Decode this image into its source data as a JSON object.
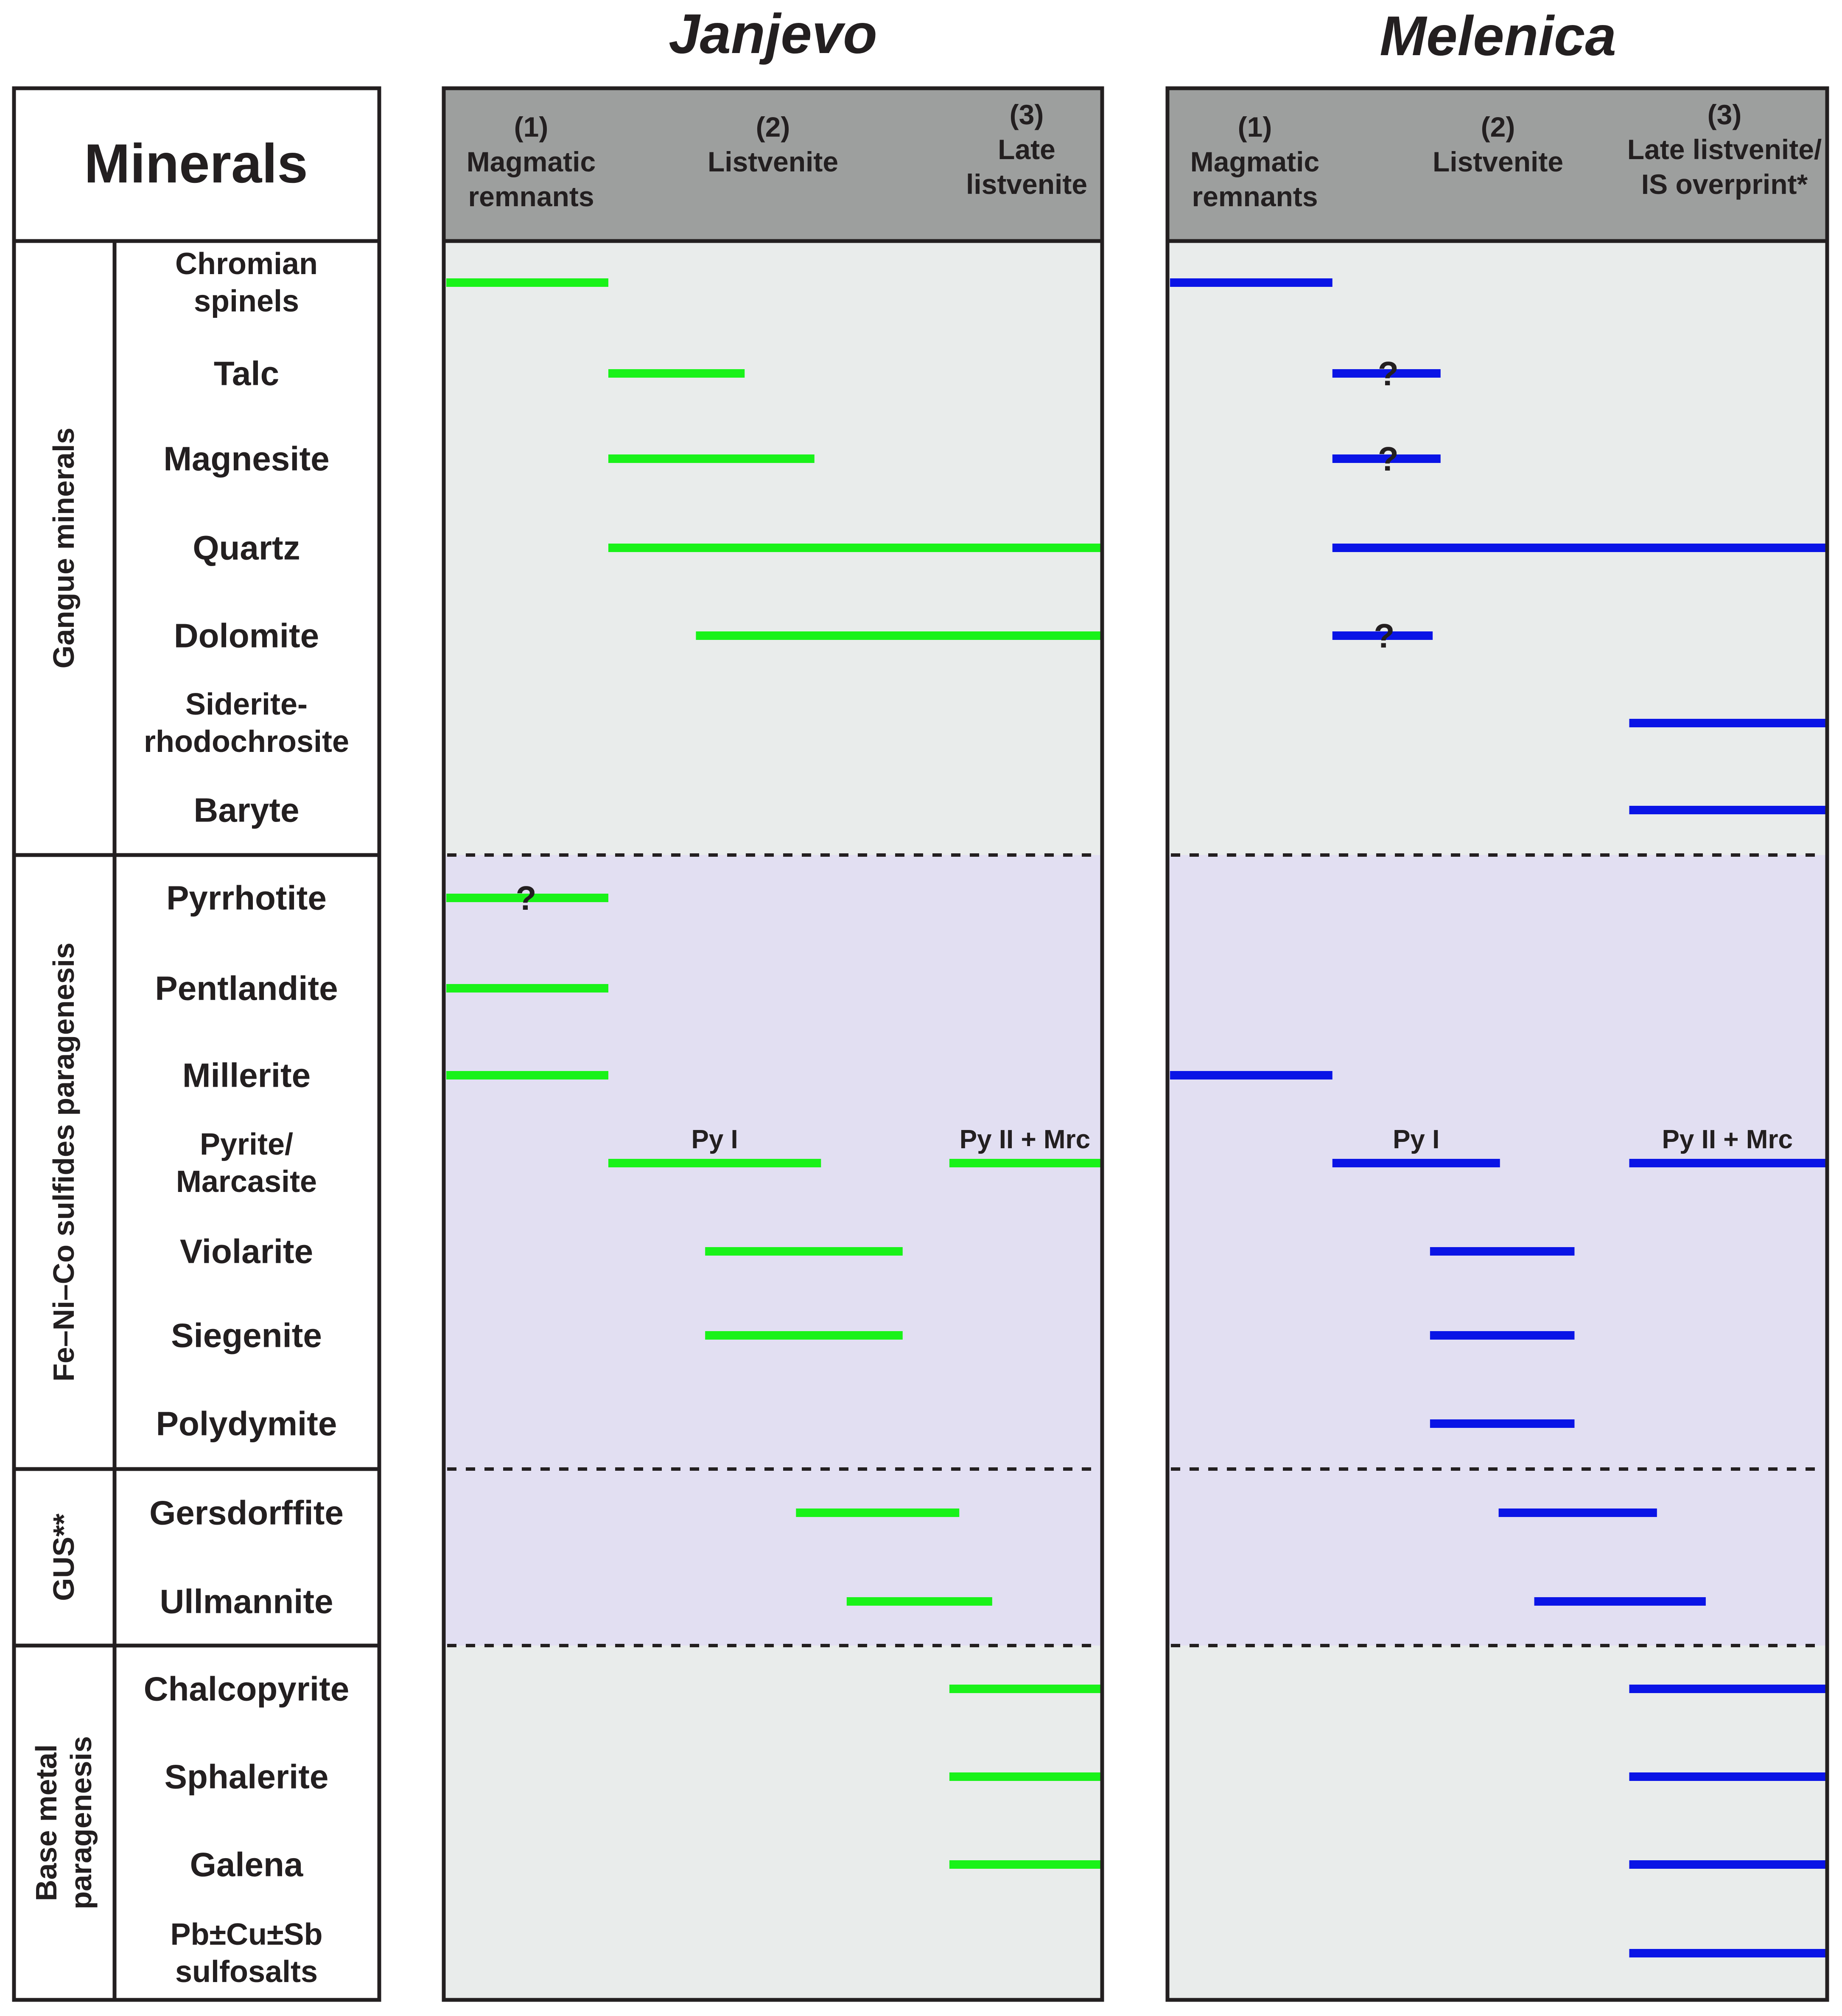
{
  "title_left": "Janjevo",
  "title_right": "Melenica",
  "minerals_header": "Minerals",
  "groups": [
    {
      "label_lines": [
        "Gangue minerals"
      ]
    },
    {
      "label_lines": [
        "Fe–Ni–Co sulfides paragenesis"
      ]
    },
    {
      "label_lines": [
        "GUS**"
      ]
    },
    {
      "label_lines": [
        "Base metal",
        "paragenesis"
      ]
    }
  ],
  "minerals": [
    [
      "Chromian",
      "spinels"
    ],
    [
      "Talc"
    ],
    [
      "Magnesite"
    ],
    [
      "Quartz"
    ],
    [
      "Dolomite"
    ],
    [
      "Siderite-",
      "rhodochrosite"
    ],
    [
      "Baryte"
    ],
    [
      "Pyrrhotite"
    ],
    [
      "Pentlandite"
    ],
    [
      "Millerite"
    ],
    [
      "Pyrite/",
      "Marcasite"
    ],
    [
      "Violarite"
    ],
    [
      "Siegenite"
    ],
    [
      "Polydymite"
    ],
    [
      "Gersdorffite"
    ],
    [
      "Ullmannite"
    ],
    [
      "Chalcopyrite"
    ],
    [
      "Sphalerite"
    ],
    [
      "Galena"
    ],
    [
      "Pb±Cu±Sb",
      "sulfosalts"
    ]
  ],
  "stages_left": [
    [
      "(1)",
      "Magmatic",
      "remnants"
    ],
    [
      "(2)",
      "Listvenite"
    ],
    [
      "(3)",
      "Late",
      "listvenite"
    ]
  ],
  "stages_right": [
    [
      "(1)",
      "Magmatic",
      "remnants"
    ],
    [
      "(2)",
      "Listvenite"
    ],
    [
      "(3)",
      "Late listvenite/",
      "IS overprint*"
    ]
  ],
  "colors": {
    "janjevo_bar": "#19f219",
    "melenica_bar": "#0a14e6",
    "header_fill": "#9d9f9e",
    "gangue_fill": "#e9eceb",
    "sulfide_fill": "#e2dff2",
    "base_fill": "#e9eceb"
  },
  "chart_data": {
    "type": "paragenetic-sequence",
    "scale_note": "bar start/end expressed as fraction of the paragenetic time axis (0 = start of stage 1, 1 = end of stage 3)",
    "janjevo": [
      {
        "mineral": "Chromian spinels",
        "segments": [
          [
            0.0,
            0.25
          ]
        ]
      },
      {
        "mineral": "Talc",
        "segments": [
          [
            0.25,
            0.457
          ]
        ]
      },
      {
        "mineral": "Magnesite",
        "segments": [
          [
            0.25,
            0.563
          ]
        ]
      },
      {
        "mineral": "Quartz",
        "segments": [
          [
            0.25,
            1.0
          ]
        ]
      },
      {
        "mineral": "Dolomite",
        "segments": [
          [
            0.383,
            1.0
          ]
        ]
      },
      {
        "mineral": "Pyrrhotite",
        "segments": [
          [
            0.0,
            0.25
          ]
        ],
        "uncertain": true
      },
      {
        "mineral": "Pentlandite",
        "segments": [
          [
            0.0,
            0.25
          ]
        ]
      },
      {
        "mineral": "Millerite",
        "segments": [
          [
            0.0,
            0.25
          ]
        ]
      },
      {
        "mineral": "Pyrite/Marcasite",
        "segments": [
          [
            0.25,
            0.573
          ],
          [
            0.768,
            1.0
          ]
        ],
        "segment_labels": [
          "Py I",
          "Py II + Mrc"
        ]
      },
      {
        "mineral": "Violarite",
        "segments": [
          [
            0.397,
            0.697
          ]
        ]
      },
      {
        "mineral": "Siegenite",
        "segments": [
          [
            0.397,
            0.697
          ]
        ]
      },
      {
        "mineral": "Gersdorffite",
        "segments": [
          [
            0.535,
            0.783
          ]
        ]
      },
      {
        "mineral": "Ullmannite",
        "segments": [
          [
            0.612,
            0.833
          ]
        ]
      },
      {
        "mineral": "Chalcopyrite",
        "segments": [
          [
            0.768,
            1.0
          ]
        ]
      },
      {
        "mineral": "Sphalerite",
        "segments": [
          [
            0.768,
            1.0
          ]
        ]
      },
      {
        "mineral": "Galena",
        "segments": [
          [
            0.768,
            1.0
          ]
        ]
      }
    ],
    "melenica": [
      {
        "mineral": "Chromian spinels",
        "segments": [
          [
            0.0,
            0.25
          ]
        ]
      },
      {
        "mineral": "Talc",
        "segments": [
          [
            0.25,
            0.414
          ]
        ]
      },
      {
        "mineral": "Magnesite",
        "segments": [
          [
            0.25,
            0.414
          ]
        ]
      },
      {
        "mineral": "Quartz",
        "segments": [
          [
            0.25,
            1.0
          ]
        ]
      },
      {
        "mineral": "Dolomite",
        "segments": [
          [
            0.25,
            0.402
          ]
        ]
      },
      {
        "mineral": "Siderite-rhodochrosite",
        "segments": [
          [
            0.7,
            1.0
          ]
        ]
      },
      {
        "mineral": "Baryte",
        "segments": [
          [
            0.7,
            1.0
          ]
        ]
      },
      {
        "mineral": "Millerite",
        "segments": [
          [
            0.0,
            0.25
          ]
        ]
      },
      {
        "mineral": "Pyrite/Marcasite",
        "segments": [
          [
            0.25,
            0.504
          ],
          [
            0.7,
            1.0
          ]
        ],
        "segment_labels": [
          "Py I",
          "Py II + Mrc"
        ]
      },
      {
        "mineral": "Violarite",
        "segments": [
          [
            0.398,
            0.617
          ]
        ]
      },
      {
        "mineral": "Siegenite",
        "segments": [
          [
            0.398,
            0.617
          ]
        ]
      },
      {
        "mineral": "Polydymite",
        "segments": [
          [
            0.398,
            0.617
          ]
        ]
      },
      {
        "mineral": "Gersdorffite",
        "segments": [
          [
            0.502,
            0.742
          ]
        ]
      },
      {
        "mineral": "Ullmannite",
        "segments": [
          [
            0.556,
            0.816
          ]
        ]
      },
      {
        "mineral": "Chalcopyrite",
        "segments": [
          [
            0.7,
            1.0
          ]
        ]
      },
      {
        "mineral": "Sphalerite",
        "segments": [
          [
            0.7,
            1.0
          ]
        ]
      },
      {
        "mineral": "Galena",
        "segments": [
          [
            0.7,
            1.0
          ]
        ]
      },
      {
        "mineral": "Pb±Cu±Sb sulfosalts",
        "segments": [
          [
            0.7,
            1.0
          ]
        ]
      }
    ],
    "question_marks": {
      "janjevo": [
        "Pyrrhotite"
      ],
      "melenica": [
        "Talc",
        "Magnesite",
        "Dolomite"
      ]
    },
    "question_mark_text": "?"
  }
}
